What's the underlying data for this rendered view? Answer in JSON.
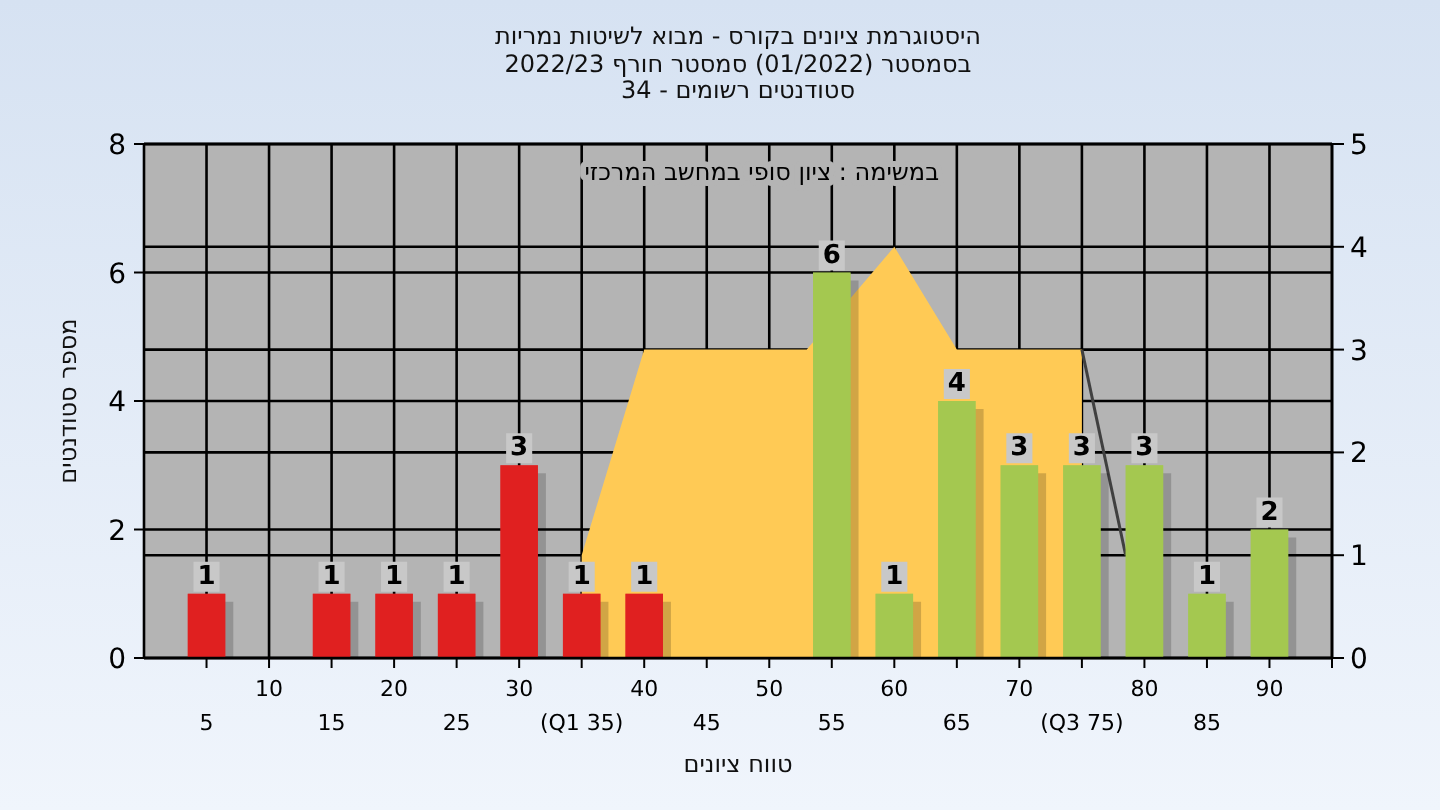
{
  "chart_data": {
    "type": "bar",
    "title": "היסטוגרמת ציונים בקורס - מבוא לשיטות נמריות",
    "subtitle": "בסמסטר  (01/2022)  סמסטר חורף 2022/23\nסטודנטים רשומים - 34",
    "xlabel": "טווח ציונים",
    "ylabel": "מספר סטודנטים",
    "annotations": [
      "במשימה : ציון סופי במחשב המרכזי"
    ],
    "xlim": [
      0,
      95
    ],
    "xticks": [
      10,
      20,
      30,
      40,
      50,
      60,
      70,
      80,
      90
    ],
    "x2lim": [
      0,
      95
    ],
    "x2ticks": [
      5,
      15,
      25,
      {
        "value": 35,
        "label": "(Q1 35)"
      },
      45,
      55,
      65,
      {
        "value": 75,
        "label": "(Q3 75)"
      },
      85,
      {
        "value": 95,
        "label": null
      }
    ],
    "ylim": [
      0,
      8
    ],
    "yticks": [
      0,
      2,
      4,
      6,
      8
    ],
    "y2lim": [
      0,
      5
    ],
    "y2ticks": [
      0,
      1,
      2,
      3,
      4,
      5
    ],
    "grid": true,
    "series": [
      {
        "type": "area",
        "axis": "y2",
        "color": "#ffca55",
        "x": [
          35,
          40,
          53,
          60,
          65,
          75
        ],
        "values": [
          1,
          3,
          3,
          4,
          3,
          3
        ]
      },
      {
        "type": "line",
        "axis": "y2",
        "color": "#404040",
        "x": [
          75,
          78.5
        ],
        "values": [
          3,
          1
        ]
      },
      {
        "x": [
          5,
          15,
          20,
          25,
          30,
          35,
          40,
          55,
          60,
          65,
          70,
          75,
          80,
          85,
          90
        ],
        "values": [
          1,
          1,
          1,
          1,
          3,
          1,
          1,
          6,
          1,
          4,
          3,
          3,
          3,
          1,
          2
        ],
        "value_labels": [
          "1",
          "1",
          "1",
          "1",
          "3",
          "1",
          "1",
          "6",
          "1",
          "4",
          "3",
          "3",
          "3",
          "1",
          "2"
        ],
        "colors": [
          "#e02020",
          "#e02020",
          "#e02020",
          "#e02020",
          "#e02020",
          "#e02020",
          "#e02020",
          "#a4c850",
          "#a4c850",
          "#a4c850",
          "#a4c850",
          "#a4c850",
          "#a4c850",
          "#a4c850",
          "#a4c850"
        ]
      }
    ]
  }
}
